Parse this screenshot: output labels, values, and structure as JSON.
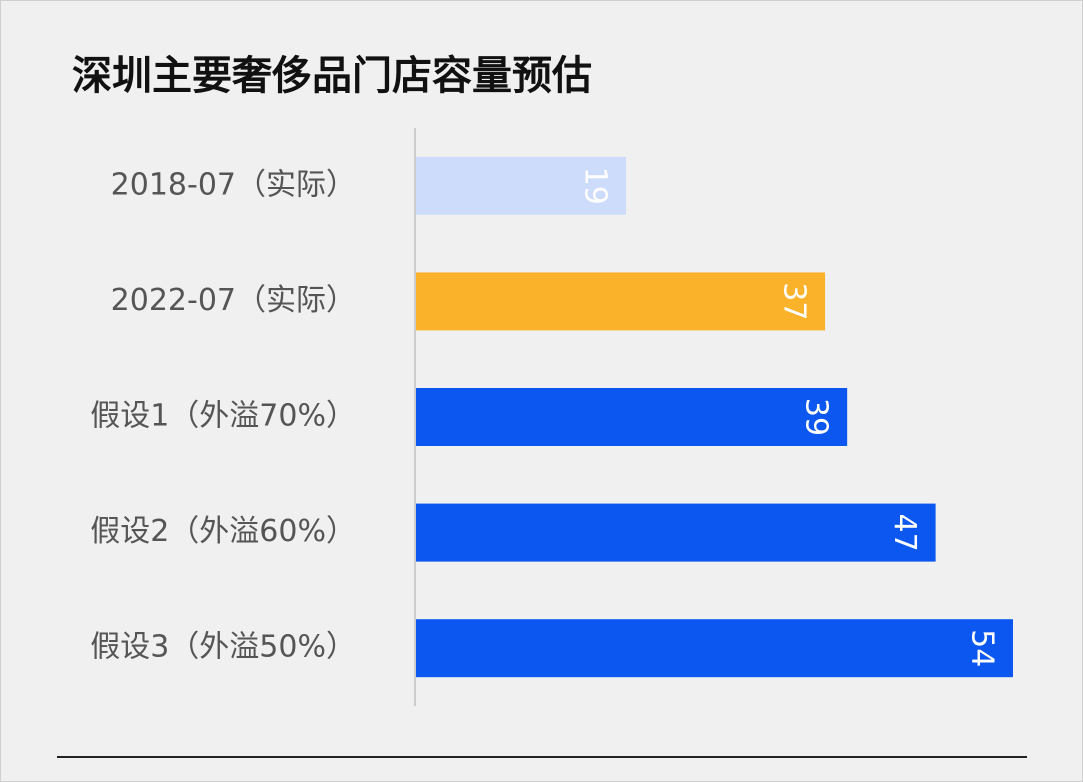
{
  "chart_data": {
    "type": "hbar",
    "title": "深圳主要奢侈品门店容量预估",
    "categories": [
      "2018-07（实际）",
      "2022-07（实际）",
      "假设1（外溢70%）",
      "假设2（外溢60%）",
      "假设3（外溢50%）"
    ],
    "values": [
      19,
      37,
      39,
      47,
      54
    ],
    "colors": [
      "#cddcfb",
      "#fbb22b",
      "#0b57f0",
      "#0b57f0",
      "#0b57f0"
    ]
  }
}
